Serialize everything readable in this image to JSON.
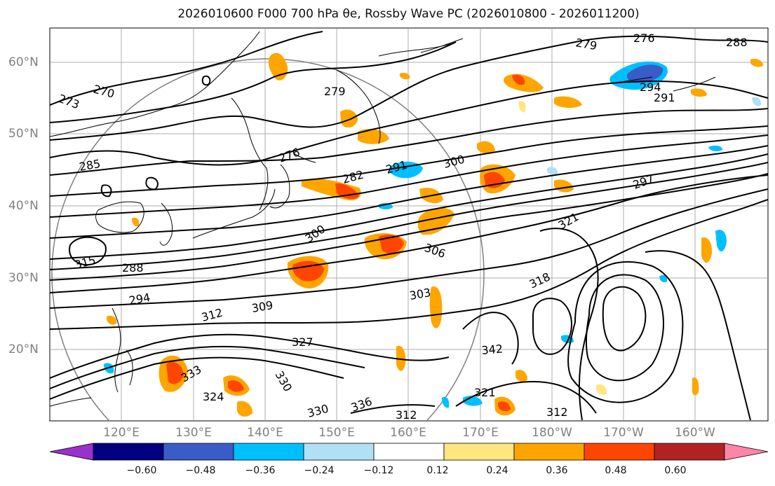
{
  "title": "2026010600 F000 700 hPa θe, Rossby Wave PC (2026010800 - 2026011200)",
  "map": {
    "lat_labels": [
      "60°N",
      "50°N",
      "40°N",
      "30°N",
      "20°N"
    ],
    "lon_labels": [
      "120°E",
      "130°E",
      "140°E",
      "150°E",
      "160°E",
      "170°E",
      "180°W",
      "170°W",
      "160°W"
    ],
    "contour_labels": [
      "273",
      "270",
      "279",
      "276",
      "288",
      "294",
      "291",
      "276",
      "285",
      "279",
      "282",
      "291",
      "300",
      "297",
      "300",
      "306",
      "294",
      "288",
      "315",
      "312",
      "309",
      "303",
      "321",
      "318",
      "327",
      "342",
      "333",
      "330",
      "324",
      "321",
      "330",
      "336",
      "312",
      "312"
    ]
  },
  "colorbar": {
    "ticks": [
      "−0.60",
      "−0.48",
      "−0.36",
      "−0.24",
      "−0.12",
      "0.12",
      "0.24",
      "0.36",
      "0.48",
      "0.60"
    ],
    "colors": [
      "#9932cc",
      "#000080",
      "#3a5cc7",
      "#00bfff",
      "#b0e0f5",
      "#ffffff",
      "#ffe680",
      "#ffa500",
      "#ff4500",
      "#b22222",
      "#ff85a8"
    ]
  }
}
